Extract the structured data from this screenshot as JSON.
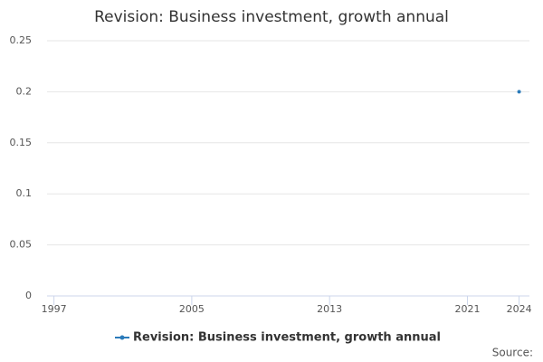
{
  "chart_data": {
    "type": "line",
    "title": "Revision: Business investment, growth annual",
    "x": [
      2024
    ],
    "series": [
      {
        "name": "Revision: Business investment, growth annual",
        "color": "#2b7bba",
        "values": [
          0.2
        ]
      }
    ],
    "xlim": [
      1996.6,
      2024.6
    ],
    "xticks": [
      1997,
      2005,
      2013,
      2021,
      2024
    ],
    "ylim": [
      0,
      0.25
    ],
    "yticks": [
      0,
      0.05,
      0.1,
      0.15,
      0.2,
      0.25
    ],
    "grid": true,
    "legend": "bottom",
    "source": "Source:"
  }
}
